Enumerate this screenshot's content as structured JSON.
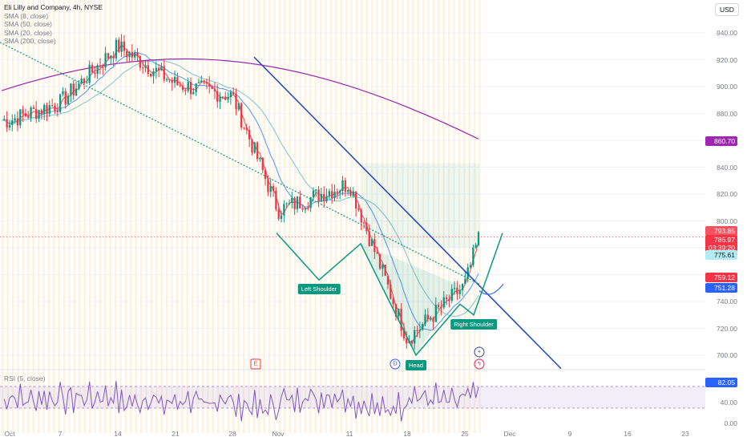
{
  "chart_data": {
    "type": "candlestick",
    "title": "Eli Lilly and Company, 4h, NYSE",
    "currency": "USD",
    "indicators": [
      "SMA (8, close)",
      "SMA (50, close)",
      "SMA (20, close)",
      "SMA (200, close)"
    ],
    "y_ticks": [
      700,
      720,
      740,
      760,
      780,
      800,
      820,
      840,
      860,
      880,
      900,
      920,
      940
    ],
    "ylim": [
      685,
      953
    ],
    "x_ticks": [
      "Oct",
      "7",
      "14",
      "21",
      "28",
      "Nov",
      "11",
      "18",
      "25",
      "Dec",
      "9",
      "16",
      "23"
    ],
    "price_badges": {
      "sma200": "860.70",
      "sma8": "793.85",
      "last_price": "786.97",
      "countdown": "03:39:20",
      "sma50": "775.61",
      "sma20": "759.12",
      "level": "751.28"
    },
    "pattern": {
      "name": "Head and Shoulders",
      "labels": [
        "Left Shoulder",
        "Head",
        "Right Shoulder"
      ]
    },
    "events": {
      "earnings": "E",
      "dividend": "D"
    },
    "rsi": {
      "label": "RSI (5, close)",
      "value": "82.05",
      "y_ticks": [
        "40.00",
        "0.00"
      ]
    },
    "closes_key": [
      [
        "Oct",
        875
      ],
      [
        "7",
        888
      ],
      [
        "14",
        930
      ],
      [
        "21",
        902
      ],
      [
        "28",
        893
      ],
      [
        "Nov",
        808
      ],
      [
        "11",
        828
      ],
      [
        "18",
        712
      ],
      [
        "25",
        752
      ],
      [
        "last",
        787
      ]
    ],
    "colors": {
      "up": "#089981",
      "down": "#f23645",
      "sma8": "#f7525f",
      "sma20": "#5b9cf6",
      "sma50": "#82c9cf",
      "sma200": "#9c27b0",
      "trendline": "#2a4dbf",
      "pattern": "#089981"
    }
  }
}
